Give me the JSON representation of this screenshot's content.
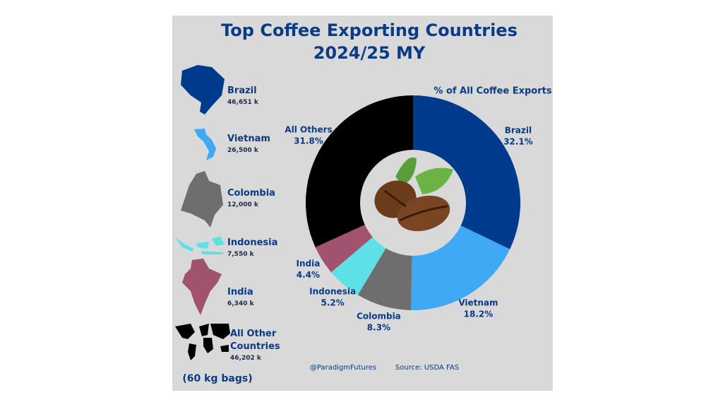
{
  "chart_data": {
    "type": "donut",
    "title": "Top Coffee Exporting Countries",
    "subtitle": "2024/25 MY",
    "chart_label": "% of All Coffee Exports",
    "categories": [
      "Brazil",
      "Vietnam",
      "Colombia",
      "Indonesia",
      "India",
      "All Others"
    ],
    "values": [
      32.1,
      18.2,
      8.3,
      5.2,
      4.4,
      31.8
    ],
    "value_labels": [
      "32.1%",
      "18.2%",
      "8.3%",
      "5.2%",
      "4.4%",
      "31.8%"
    ],
    "colors": [
      "#003a8c",
      "#3fa9f5",
      "#6e6e6e",
      "#5ce1e6",
      "#a0526e",
      "#000000"
    ],
    "volumes": [
      {
        "name": "Brazil",
        "volume": "46,651 k"
      },
      {
        "name": "Vietnam",
        "volume": "26,500 k"
      },
      {
        "name": "Colombia",
        "volume": "12,000 k"
      },
      {
        "name": "Indonesia",
        "volume": "7,550 k"
      },
      {
        "name": "India",
        "volume": "6,340 k"
      },
      {
        "name": "All Other Countries",
        "volume": "46,202 k"
      }
    ],
    "unit_note": "(60 kg bags)",
    "credit": "@ParadigmFutures",
    "source": "Source: USDA FAS"
  }
}
